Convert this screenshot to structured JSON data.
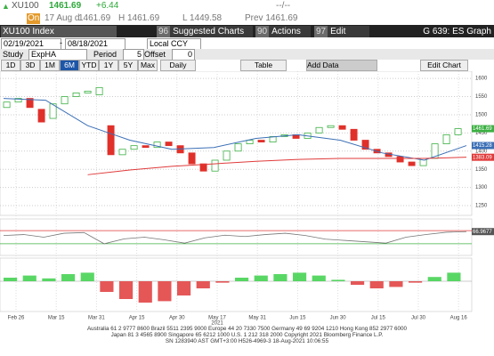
{
  "header": {
    "ticker": "XU100",
    "last": "1461.69",
    "change": "+6.44",
    "time": "--/--",
    "on_label": "On",
    "date": "17 Aug d",
    "open": "1461.69",
    "high": "H 1461.69",
    "low": "L 1449.58",
    "prev": "Prev 1461.69"
  },
  "toolbar": {
    "security": "XU100 Index",
    "buttons": [
      {
        "code": "96",
        "label": "Suggested Charts"
      },
      {
        "code": "90",
        "label": "Actions"
      },
      {
        "code": "97",
        "label": "Edit"
      }
    ],
    "page": "G 639: ES Graph"
  },
  "range": {
    "start": "02/19/2021",
    "end": "08/18/2021",
    "currency": "Local CCY"
  },
  "study": {
    "label": "Study",
    "value": "ExpHA",
    "period_label": "Period",
    "period": "5",
    "offset_label": "Offset",
    "offset": "0"
  },
  "periods": [
    "1D",
    "3D",
    "1M",
    "6M",
    "YTD",
    "1Y",
    "5Y",
    "Max"
  ],
  "frequency": "Daily",
  "table": "Table",
  "add_data": "Add Data",
  "edit_chart": "Edit Chart",
  "chart_data": [
    {
      "type": "candlestick",
      "up_color": "#3cb043",
      "down_color": "#e0302a",
      "open": [
        1520,
        1535,
        1545,
        1515,
        1490,
        1530,
        1550,
        1560,
        1555,
        1470,
        1390,
        1405,
        1415,
        1410,
        1425,
        1415,
        1395,
        1365,
        1345,
        1375,
        1400,
        1420,
        1430,
        1425,
        1440,
        1445,
        1435,
        1450,
        1465,
        1470,
        1460,
        1430,
        1405,
        1395,
        1385,
        1370,
        1360,
        1380,
        1420,
        1445
      ],
      "close": [
        1535,
        1545,
        1520,
        1480,
        1530,
        1550,
        1560,
        1565,
        1575,
        1390,
        1405,
        1415,
        1410,
        1425,
        1415,
        1395,
        1365,
        1345,
        1375,
        1400,
        1420,
        1430,
        1425,
        1440,
        1445,
        1435,
        1450,
        1465,
        1470,
        1460,
        1430,
        1405,
        1395,
        1385,
        1370,
        1360,
        1380,
        1420,
        1445,
        1461.69
      ],
      "series": [
        {
          "color": "#3b6fb6",
          "values": [
            1545,
            1540,
            1470,
            1430,
            1405,
            1410,
            1435,
            1445,
            1430,
            1395,
            1375,
            1415.28
          ]
        },
        {
          "color": "#e03a3a",
          "values": [
            null,
            null,
            1335,
            1348,
            1358,
            1365,
            1372,
            1377,
            1380,
            1380,
            1380,
            1383.09
          ]
        }
      ],
      "price_tags": [
        {
          "value": 1461.69,
          "label": "1461.69",
          "color": "#3cb043"
        },
        {
          "value": 1415.28,
          "label": "1415.28",
          "color": "#3b6fb6"
        },
        {
          "value": 1383.09,
          "label": "1383.09",
          "color": "#e03a3a"
        }
      ],
      "ylim": [
        1228,
        1615
      ],
      "yticks": [
        1250,
        1300,
        1350,
        1400,
        1450,
        1500,
        1550,
        1600
      ],
      "grid": true,
      "date_labels": [
        "Feb 26",
        "Mar 15",
        "Mar 31",
        "Apr 15",
        "Apr 30",
        "May 17",
        "May 31",
        "Jun 15",
        "Jun 30",
        "Jul 15",
        "Jul 30",
        "Aug 16"
      ],
      "year": "2021"
    },
    {
      "type": "line",
      "color": "#777",
      "values": [
        55,
        58,
        50,
        62,
        64,
        30,
        45,
        50,
        42,
        32,
        48,
        56,
        52,
        58,
        62,
        55,
        44,
        40,
        36,
        32,
        50,
        58,
        65,
        66.9677
      ],
      "upper": 70,
      "lower": 30,
      "upper_color": "#e03a3a",
      "lower_color": "#3cb043",
      "ylim": [
        0,
        100
      ],
      "tag": {
        "value": 66.9677,
        "label": "66.9677"
      }
    },
    {
      "type": "bar",
      "up_color": "#3cd04a",
      "down_color": "#e03a3a",
      "values": [
        5,
        8,
        4,
        10,
        12,
        -15,
        -25,
        -30,
        -28,
        -20,
        -10,
        -2,
        5,
        8,
        10,
        12,
        8,
        2,
        -5,
        -10,
        -8,
        -2,
        6,
        12
      ],
      "ylim": [
        -40,
        30
      ]
    }
  ],
  "footer": [
    "Australia 61 2 9777 8600 Brazil 5511 2395 9000 Europe 44 20 7330 7500 Germany 49 69 9204 1210 Hong Kong 852 2977 6000",
    "Japan 81 3 4565 8900 Singapore 65 6212 1000 U.S. 1 212 318 2000 Copyright 2021 Bloomberg Finance L.P.",
    "SN 1283940 AST GMT+3:00 H526-4969-3 18-Aug-2021 10:06:55"
  ]
}
